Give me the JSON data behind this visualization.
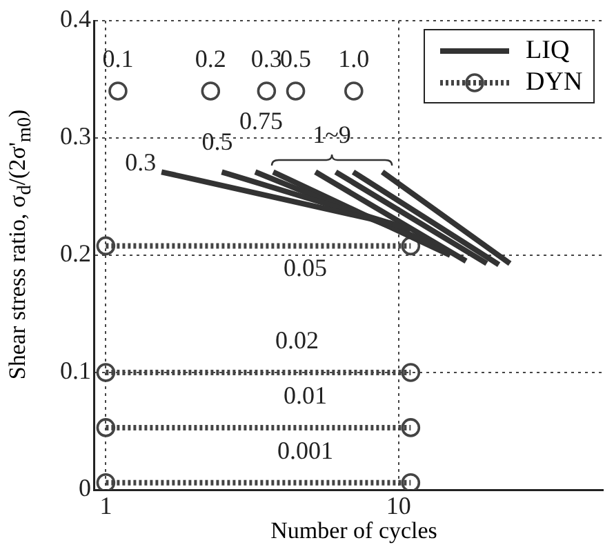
{
  "chart_data": {
    "type": "line",
    "xlabel": "Number of cycles",
    "ylabel": "Shear stress ratio, σ$_{d}$/(2σ'$_{m0}$)",
    "log": "x",
    "xlim": [
      0.91,
      50
    ],
    "xticks": [
      1,
      10
    ],
    "ylim": [
      0,
      0.4
    ],
    "yticks": [
      0,
      0.1,
      0.2,
      0.3,
      0.4
    ],
    "grid": true,
    "legend": "top right",
    "series": [
      {
        "name": "LIQ",
        "color": "#333333",
        "marker": "none",
        "line_style": "solid",
        "x": [
          1.55,
          9.5
        ],
        "values": [
          0.271,
          0.227
        ]
      },
      {
        "type": "line",
        "color": "#333333",
        "marker": "none",
        "line_style": "solid",
        "x": [
          2.49,
          11
        ],
        "values": [
          0.271,
          0.222
        ]
      },
      {
        "type": "line",
        "color": "#333333",
        "marker": "none",
        "line_style": "solid",
        "x": [
          3.24,
          13
        ],
        "values": [
          0.271,
          0.21
        ]
      },
      {
        "type": "line",
        "color": "#333333",
        "marker": "none",
        "line_style": "solid",
        "x": [
          3.73,
          15
        ],
        "values": [
          0.271,
          0.2
        ]
      },
      {
        "type": "line",
        "color": "#333333",
        "marker": "none",
        "line_style": "solid",
        "x": [
          5.2,
          17
        ],
        "values": [
          0.271,
          0.195
        ]
      },
      {
        "type": "line",
        "color": "#333333",
        "marker": "none",
        "line_style": "solid",
        "x": [
          6.1,
          20
        ],
        "values": [
          0.271,
          0.193
        ]
      },
      {
        "type": "line",
        "color": "#333333",
        "marker": "none",
        "line_style": "solid",
        "x": [
          7.0,
          22
        ],
        "values": [
          0.271,
          0.192
        ]
      },
      {
        "type": "line",
        "color": "#333333",
        "marker": "none",
        "line_style": "solid",
        "x": [
          8.8,
          24
        ],
        "values": [
          0.271,
          0.193
        ]
      },
      {
        "name": "DYN",
        "type": "line",
        "color": "#444444",
        "marker": "circle",
        "line_style": "dotted",
        "x": [
          1,
          11
        ],
        "values": [
          0.208,
          0.208
        ]
      },
      {
        "type": "line",
        "color": "#444444",
        "marker": "circle",
        "line_style": "dotted",
        "x": [
          1,
          11
        ],
        "values": [
          0.1,
          0.1
        ]
      },
      {
        "type": "line",
        "color": "#444444",
        "marker": "circle",
        "line_style": "dotted",
        "x": [
          1,
          11
        ],
        "values": [
          0.053,
          0.053
        ]
      },
      {
        "type": "line",
        "color": "#444444",
        "marker": "circle",
        "line_style": "dotted",
        "x": [
          1,
          11
        ],
        "values": [
          0.006,
          0.006
        ]
      },
      {
        "type": "scatter",
        "color": "#444444",
        "marker": "circle",
        "x": [
          1.1,
          2.28,
          3.54,
          4.45,
          7.03
        ],
        "values": [
          0.34,
          0.34,
          0.34,
          0.34,
          0.34
        ]
      }
    ],
    "annotations": [
      {
        "text": "0.1",
        "x": 1.1,
        "y": 0.34
      },
      {
        "text": "0.2",
        "x": 2.28,
        "y": 0.34
      },
      {
        "text": "0.3",
        "x": 3.54,
        "y": 0.34
      },
      {
        "text": "0.5",
        "x": 4.45,
        "y": 0.34
      },
      {
        "text": "1.0",
        "x": 7.03,
        "y": 0.34
      },
      {
        "text": "0.3",
        "x": 1.55,
        "y": 0.271
      },
      {
        "text": "0.5",
        "x": 2.49,
        "y": 0.271
      },
      {
        "text": "0.75",
        "x": 3.24,
        "y": 0.271
      },
      "1~9",
      {
        "text": "0.05",
        "x": 4.8,
        "y": 0.208
      },
      {
        "text": "0.02",
        "x": 4.5,
        "y": 0.1
      },
      {
        "text": "0.01",
        "x": 4.8,
        "y": 0.053
      },
      {
        "text": "0.001",
        "x": 4.8,
        "y": 0.006
      }
    ]
  }
}
